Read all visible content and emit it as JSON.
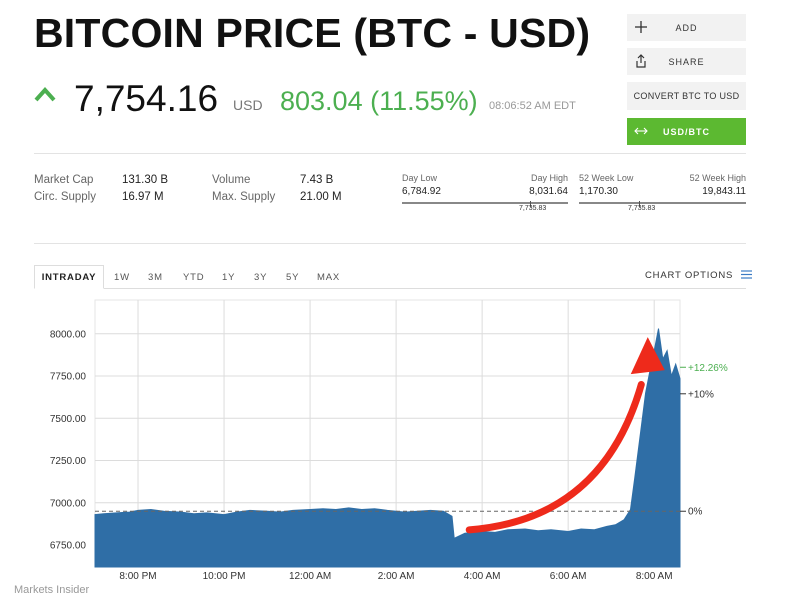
{
  "header": {
    "title": "BITCOIN PRICE (BTC - USD)",
    "price": "7,754.16",
    "currency": "USD",
    "change": "803.04 (11.55%)",
    "timestamp": "08:06:52 AM EDT",
    "up_color": "#4caf50"
  },
  "actions": {
    "add": "ADD",
    "share": "SHARE",
    "convert": "CONVERT BTC TO USD",
    "usd_btc": "USD/BTC"
  },
  "stats": {
    "market_cap_label": "Market Cap",
    "market_cap": "131.30 B",
    "circ_supply_label": "Circ. Supply",
    "circ_supply": "16.97 M",
    "volume_label": "Volume",
    "volume": "7.43 B",
    "max_supply_label": "Max. Supply",
    "max_supply": "21.00 M"
  },
  "day_range": {
    "low_label": "Day Low",
    "high_label": "Day High",
    "low": "6,784.92",
    "high": "8,031.64",
    "current": "7,735.83"
  },
  "week52_range": {
    "low_label": "52 Week Low",
    "high_label": "52 Week High",
    "low": "1,170.30",
    "high": "19,843.11",
    "current": "7,735.83"
  },
  "tabs": [
    "INTRADAY",
    "1W",
    "3M",
    "YTD",
    "1Y",
    "3Y",
    "5Y",
    "MAX"
  ],
  "chart_options": "CHART OPTIONS",
  "footer": "Markets Insider",
  "chart_data": {
    "type": "area",
    "title": "",
    "xlabel": "",
    "ylabel": "",
    "ylim": [
      6620,
      8200
    ],
    "y_ticks": [
      8000,
      7750,
      7500,
      7250,
      7000,
      6750
    ],
    "y_tick_labels": [
      "8000.00",
      "7750.00",
      "7500.00",
      "7250.00",
      "7000.00",
      "6750.00"
    ],
    "x_tick_labels": [
      "8:00 PM",
      "10:00 PM",
      "12:00 AM",
      "2:00 AM",
      "4:00 AM",
      "6:00 AM",
      "8:00 AM"
    ],
    "x_tick_hours": [
      1,
      3,
      5,
      7,
      9,
      11,
      13
    ],
    "baseline_value": 6950,
    "right_annotations": [
      {
        "label": "+12.26%",
        "value": 7802,
        "color": "#4caf50"
      },
      {
        "label": "+10%",
        "value": 7645,
        "color": "#333333"
      },
      {
        "label": "0%",
        "value": 6950,
        "color": "#333333"
      }
    ],
    "series": [
      {
        "x": [
          0,
          0.2,
          0.5,
          0.8,
          1.0,
          1.3,
          1.6,
          2.0,
          2.3,
          2.6,
          3.0,
          3.3,
          3.6,
          4.0,
          4.3,
          4.6,
          5.0,
          5.3,
          5.6,
          5.9,
          6.2,
          6.5,
          6.8,
          7.0,
          7.2,
          7.5,
          7.8,
          8.1,
          8.3,
          8.35,
          8.6,
          9.0,
          9.3,
          9.6,
          10.0,
          10.3,
          10.6,
          11.0,
          11.3,
          11.6,
          11.9,
          12.1,
          12.3,
          12.45,
          12.55,
          12.7,
          12.8,
          12.9,
          13.0,
          13.1,
          13.2,
          13.3,
          13.4,
          13.5,
          13.6
        ],
        "y": [
          6930,
          6935,
          6940,
          6945,
          6955,
          6960,
          6950,
          6945,
          6935,
          6940,
          6930,
          6945,
          6955,
          6950,
          6945,
          6955,
          6960,
          6965,
          6960,
          6970,
          6960,
          6965,
          6955,
          6950,
          6945,
          6950,
          6955,
          6950,
          6920,
          6790,
          6820,
          6830,
          6825,
          6840,
          6845,
          6835,
          6840,
          6830,
          6845,
          6840,
          6860,
          6870,
          6900,
          6960,
          7150,
          7450,
          7650,
          7780,
          7900,
          8031,
          7850,
          7900,
          7750,
          7820,
          7735
        ],
        "color": "#2f6ea6"
      }
    ],
    "colors": {
      "area": "#2f6ea6",
      "arrow": "#ee2a1b",
      "grid": "#dcdcdc",
      "baseline": "#666666"
    }
  }
}
